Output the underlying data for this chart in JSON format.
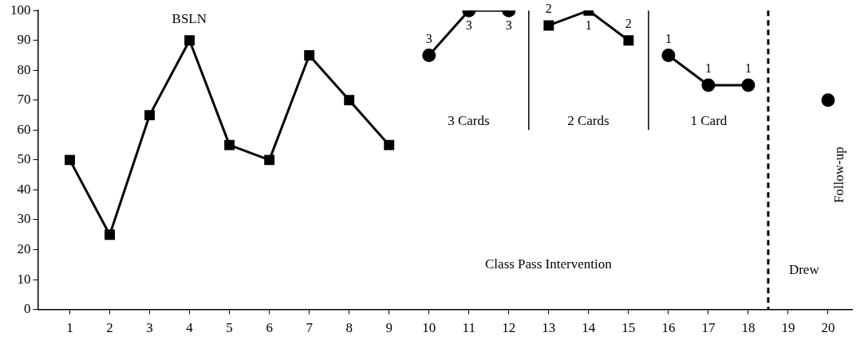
{
  "chart_data": {
    "type": "line",
    "xlim": [
      0.2,
      20.6
    ],
    "xticks": [
      1,
      2,
      3,
      4,
      5,
      6,
      7,
      8,
      9,
      10,
      11,
      12,
      13,
      14,
      15,
      16,
      17,
      18,
      19,
      20
    ],
    "ylim": [
      0,
      100
    ],
    "yticks": [
      0,
      10,
      20,
      30,
      40,
      50,
      60,
      70,
      80,
      90,
      100
    ],
    "grid": false,
    "legend": false,
    "line_style": "solid",
    "series": [
      {
        "color": "#000000",
        "marker": "square",
        "x": [
          1,
          2,
          3,
          4,
          5,
          6,
          7,
          8,
          9
        ],
        "values": [
          50,
          25,
          65,
          90,
          55,
          50,
          85,
          70,
          55
        ]
      },
      {
        "color": "#000000",
        "marker": "circle",
        "x": [
          10,
          11,
          12
        ],
        "values": [
          85,
          100,
          100
        ]
      },
      {
        "color": "#000000",
        "marker": "square",
        "x": [
          13,
          14,
          15
        ],
        "values": [
          95,
          100,
          90
        ]
      },
      {
        "color": "#000000",
        "marker": "circle",
        "x": [
          16,
          17,
          18
        ],
        "values": [
          85,
          75,
          75
        ]
      },
      {
        "color": "#000000",
        "marker": "circle",
        "x": [
          20
        ],
        "values": [
          70
        ]
      }
    ],
    "ref_lines": [
      {
        "axis": "x",
        "value": 12.5,
        "line_style": "solid"
      },
      {
        "axis": "x",
        "value": 15.5,
        "line_style": "solid"
      },
      {
        "axis": "x",
        "value": 18.5,
        "line_style": "dashed"
      }
    ],
    "annotations": [
      "BSLN",
      "3 Cards",
      "2 Cards",
      "1 Card",
      "Class Pass Intervention",
      "Drew",
      "Follow-up",
      {
        "text": "3",
        "x": 10,
        "y": 85
      },
      {
        "text": "3",
        "x": 11,
        "y": 100
      },
      {
        "text": "3",
        "x": 12,
        "y": 100
      },
      {
        "text": "2",
        "x": 13,
        "y": 95
      },
      {
        "text": "1",
        "x": 14,
        "y": 100
      },
      {
        "text": "2",
        "x": 15,
        "y": 90
      },
      {
        "text": "1",
        "x": 16,
        "y": 85
      },
      {
        "text": "1",
        "x": 17,
        "y": 75
      },
      {
        "text": "1",
        "x": 18,
        "y": 75
      }
    ]
  }
}
